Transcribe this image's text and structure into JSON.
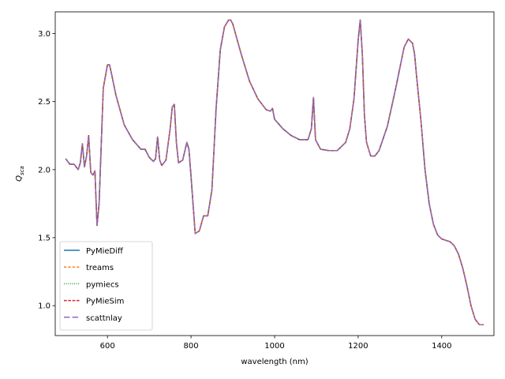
{
  "chart_data": {
    "type": "line",
    "title": "",
    "xlabel": "wavelength (nm)",
    "ylabel_main": "Q",
    "ylabel_sub": "sca",
    "xlim": [
      475,
      1525
    ],
    "ylim": [
      0.78,
      3.16
    ],
    "xticks": [
      400,
      600,
      800,
      1000,
      1200,
      1400
    ],
    "xtick_labels": [
      "",
      "600",
      "800",
      "1000",
      "1200",
      "1400"
    ],
    "yticks": [
      1.0,
      1.5,
      2.0,
      2.5,
      3.0
    ],
    "ytick_labels": [
      "1.0",
      "1.5",
      "2.0",
      "2.5",
      "3.0"
    ],
    "grid": false,
    "legend_position": "lower-left",
    "x": [
      500,
      510,
      520,
      530,
      535,
      540,
      545,
      550,
      555,
      560,
      565,
      570,
      575,
      580,
      590,
      600,
      605,
      610,
      620,
      640,
      660,
      680,
      690,
      700,
      710,
      715,
      720,
      725,
      730,
      740,
      750,
      755,
      760,
      765,
      770,
      780,
      790,
      795,
      800,
      810,
      820,
      830,
      840,
      850,
      860,
      870,
      880,
      890,
      895,
      900,
      920,
      940,
      960,
      980,
      990,
      995,
      1000,
      1020,
      1040,
      1060,
      1080,
      1088,
      1093,
      1098,
      1110,
      1130,
      1150,
      1170,
      1180,
      1190,
      1200,
      1205,
      1210,
      1215,
      1220,
      1230,
      1240,
      1250,
      1270,
      1290,
      1310,
      1320,
      1330,
      1335,
      1340,
      1350,
      1360,
      1370,
      1380,
      1390,
      1400,
      1420,
      1430,
      1440,
      1450,
      1460,
      1470,
      1480,
      1490,
      1500
    ],
    "series": [
      {
        "name": "PyMieDiff",
        "color": "#1f77b4",
        "dash": "",
        "width": 1.5,
        "values": [
          2.08,
          2.04,
          2.04,
          2.0,
          2.05,
          2.19,
          2.02,
          2.1,
          2.25,
          1.98,
          1.96,
          1.99,
          1.59,
          1.75,
          2.6,
          2.77,
          2.77,
          2.7,
          2.55,
          2.33,
          2.22,
          2.15,
          2.15,
          2.09,
          2.06,
          2.08,
          2.24,
          2.07,
          2.03,
          2.07,
          2.3,
          2.46,
          2.48,
          2.2,
          2.05,
          2.07,
          2.2,
          2.15,
          1.95,
          1.53,
          1.55,
          1.66,
          1.66,
          1.85,
          2.45,
          2.88,
          3.05,
          3.1,
          3.1,
          3.07,
          2.85,
          2.65,
          2.52,
          2.44,
          2.43,
          2.45,
          2.37,
          2.3,
          2.25,
          2.22,
          2.22,
          2.3,
          2.53,
          2.22,
          2.15,
          2.14,
          2.14,
          2.2,
          2.3,
          2.52,
          2.95,
          3.1,
          2.85,
          2.4,
          2.2,
          2.1,
          2.1,
          2.14,
          2.32,
          2.6,
          2.9,
          2.96,
          2.93,
          2.85,
          2.68,
          2.37,
          2.0,
          1.75,
          1.6,
          1.52,
          1.49,
          1.47,
          1.44,
          1.38,
          1.28,
          1.15,
          1.0,
          0.9,
          0.86,
          0.86
        ]
      },
      {
        "name": "treams",
        "color": "#ff7f0e",
        "dash": "3.2,2.2",
        "width": 1.5,
        "values": [
          2.08,
          2.04,
          2.04,
          2.0,
          2.05,
          2.19,
          2.02,
          2.1,
          2.25,
          1.98,
          1.96,
          1.99,
          1.59,
          1.75,
          2.6,
          2.77,
          2.77,
          2.7,
          2.55,
          2.33,
          2.22,
          2.15,
          2.15,
          2.09,
          2.06,
          2.08,
          2.24,
          2.07,
          2.03,
          2.07,
          2.3,
          2.46,
          2.48,
          2.2,
          2.05,
          2.07,
          2.2,
          2.15,
          1.95,
          1.53,
          1.55,
          1.66,
          1.66,
          1.85,
          2.45,
          2.88,
          3.05,
          3.1,
          3.1,
          3.07,
          2.85,
          2.65,
          2.52,
          2.44,
          2.43,
          2.45,
          2.37,
          2.3,
          2.25,
          2.22,
          2.22,
          2.3,
          2.53,
          2.22,
          2.15,
          2.14,
          2.14,
          2.2,
          2.3,
          2.52,
          2.95,
          3.1,
          2.85,
          2.4,
          2.2,
          2.1,
          2.1,
          2.14,
          2.32,
          2.6,
          2.9,
          2.96,
          2.93,
          2.85,
          2.68,
          2.37,
          2.0,
          1.75,
          1.6,
          1.52,
          1.49,
          1.47,
          1.44,
          1.38,
          1.28,
          1.15,
          1.0,
          0.9,
          0.86,
          0.86
        ]
      },
      {
        "name": "pymiecs",
        "color": "#2ca02c",
        "dash": "1,1.6",
        "width": 1.5,
        "values": [
          2.08,
          2.04,
          2.04,
          2.0,
          2.05,
          2.19,
          2.02,
          2.1,
          2.25,
          1.98,
          1.96,
          1.99,
          1.59,
          1.75,
          2.6,
          2.77,
          2.77,
          2.7,
          2.55,
          2.33,
          2.22,
          2.15,
          2.15,
          2.09,
          2.06,
          2.08,
          2.24,
          2.07,
          2.03,
          2.07,
          2.3,
          2.46,
          2.48,
          2.2,
          2.05,
          2.07,
          2.2,
          2.15,
          1.95,
          1.53,
          1.55,
          1.66,
          1.66,
          1.85,
          2.45,
          2.88,
          3.05,
          3.1,
          3.1,
          3.07,
          2.85,
          2.65,
          2.52,
          2.44,
          2.43,
          2.45,
          2.37,
          2.3,
          2.25,
          2.22,
          2.22,
          2.3,
          2.53,
          2.22,
          2.15,
          2.14,
          2.14,
          2.2,
          2.3,
          2.52,
          2.95,
          3.1,
          2.85,
          2.4,
          2.2,
          2.1,
          2.1,
          2.14,
          2.32,
          2.6,
          2.9,
          2.96,
          2.93,
          2.85,
          2.68,
          2.37,
          2.0,
          1.75,
          1.6,
          1.52,
          1.49,
          1.47,
          1.44,
          1.38,
          1.28,
          1.15,
          1.0,
          0.9,
          0.86,
          0.86
        ]
      },
      {
        "name": "PyMieSim",
        "color": "#d62728",
        "dash": "3.7,1.6",
        "width": 1.5,
        "values": [
          2.08,
          2.04,
          2.04,
          2.0,
          2.05,
          2.19,
          2.02,
          2.1,
          2.25,
          1.98,
          1.96,
          1.99,
          1.59,
          1.75,
          2.6,
          2.77,
          2.77,
          2.7,
          2.55,
          2.33,
          2.22,
          2.15,
          2.15,
          2.09,
          2.06,
          2.08,
          2.24,
          2.07,
          2.03,
          2.07,
          2.3,
          2.46,
          2.48,
          2.2,
          2.05,
          2.07,
          2.2,
          2.15,
          1.95,
          1.53,
          1.55,
          1.66,
          1.66,
          1.85,
          2.45,
          2.88,
          3.05,
          3.1,
          3.1,
          3.07,
          2.85,
          2.65,
          2.52,
          2.44,
          2.43,
          2.45,
          2.37,
          2.3,
          2.25,
          2.22,
          2.22,
          2.3,
          2.53,
          2.22,
          2.15,
          2.14,
          2.14,
          2.2,
          2.3,
          2.52,
          2.95,
          3.1,
          2.85,
          2.4,
          2.2,
          2.1,
          2.1,
          2.14,
          2.32,
          2.6,
          2.9,
          2.96,
          2.93,
          2.85,
          2.68,
          2.37,
          2.0,
          1.75,
          1.6,
          1.52,
          1.49,
          1.47,
          1.44,
          1.38,
          1.28,
          1.15,
          1.0,
          0.9,
          0.86,
          0.86
        ]
      },
      {
        "name": "scattnlay",
        "color": "#9467bd",
        "dash": "7.4,3.2",
        "width": 1.5,
        "values": [
          2.08,
          2.04,
          2.04,
          2.0,
          2.05,
          2.19,
          2.02,
          2.1,
          2.25,
          1.98,
          1.96,
          1.99,
          1.59,
          1.75,
          2.6,
          2.77,
          2.77,
          2.7,
          2.55,
          2.33,
          2.22,
          2.15,
          2.15,
          2.09,
          2.06,
          2.08,
          2.24,
          2.07,
          2.03,
          2.07,
          2.3,
          2.46,
          2.48,
          2.2,
          2.05,
          2.07,
          2.2,
          2.15,
          1.95,
          1.53,
          1.55,
          1.66,
          1.66,
          1.85,
          2.45,
          2.88,
          3.05,
          3.1,
          3.1,
          3.07,
          2.85,
          2.65,
          2.52,
          2.44,
          2.43,
          2.45,
          2.37,
          2.3,
          2.25,
          2.22,
          2.22,
          2.3,
          2.53,
          2.22,
          2.15,
          2.14,
          2.14,
          2.2,
          2.3,
          2.52,
          2.95,
          3.1,
          2.85,
          2.4,
          2.2,
          2.1,
          2.1,
          2.14,
          2.32,
          2.6,
          2.9,
          2.96,
          2.93,
          2.85,
          2.68,
          2.37,
          2.0,
          1.75,
          1.6,
          1.52,
          1.49,
          1.47,
          1.44,
          1.38,
          1.28,
          1.15,
          1.0,
          0.9,
          0.86,
          0.86
        ]
      }
    ]
  }
}
